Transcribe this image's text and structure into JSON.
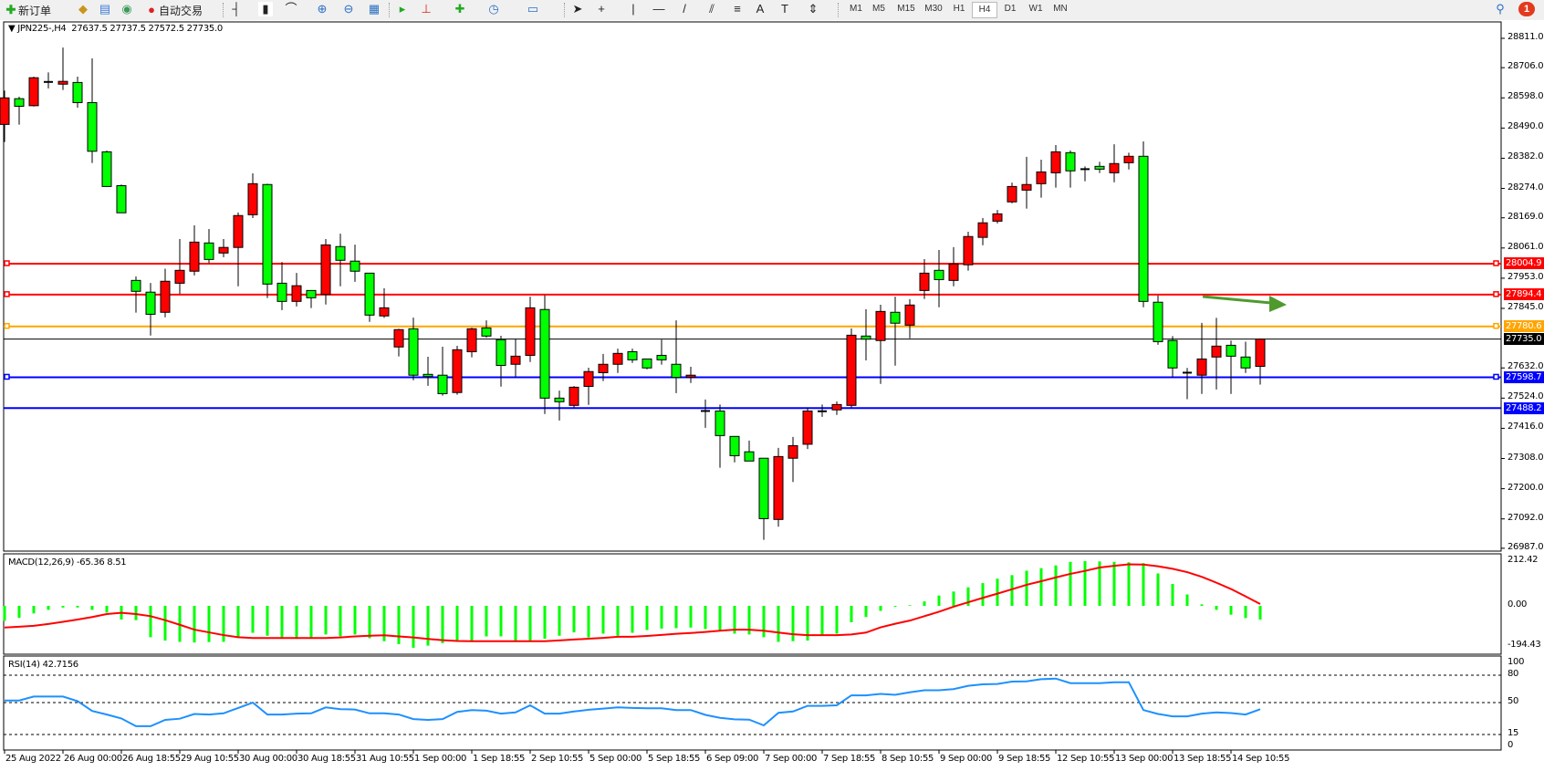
{
  "toolbar": {
    "new_order_label": "新订单",
    "auto_trading_label": "自动交易",
    "icons": [
      "new-order-icon",
      "metaeditor-icon",
      "navigator-icon",
      "market-watch-icon",
      "signals-icon",
      "auto-trading-icon",
      "bar-chart-icon",
      "candlestick-icon",
      "line-chart-icon",
      "zoom-in-icon",
      "zoom-out-icon",
      "tile-windows-icon",
      "autoscroll-icon",
      "chart-shift-icon",
      "indicators-icon",
      "periods-icon",
      "templates-icon",
      "cursor-icon",
      "crosshair-icon",
      "vertical-line-icon",
      "horizontal-line-icon",
      "trendline-icon",
      "equidistant-channel-icon",
      "fibonacci-icon",
      "text-icon",
      "text-label-icon",
      "arrows-icon"
    ],
    "timeframes": [
      "M1",
      "M5",
      "M15",
      "M30",
      "H1",
      "H4",
      "D1",
      "W1",
      "MN"
    ],
    "selected_timeframe": "H4",
    "notification_count": "1"
  },
  "chart": {
    "symbol": "JPN225-,H4",
    "ohlc_text": "27637.5 27737.5 27572.5 27735.0",
    "bull_color": "#ff0000",
    "bear_color": "#00ff00",
    "price_ticks": [
      "28811.0",
      "28706.0",
      "28598.0",
      "28490.0",
      "28382.0",
      "28274.0",
      "28169.0",
      "28061.0",
      "27953.0",
      "27845.0",
      "27632.0",
      "27524.0",
      "27416.0",
      "27308.0",
      "27200.0",
      "27092.0",
      "26987.0"
    ],
    "levels": [
      {
        "value": 28004.9,
        "label": "28004.9",
        "color": "#ff0000"
      },
      {
        "value": 27894.4,
        "label": "27894.4",
        "color": "#ff0000"
      },
      {
        "value": 27780.6,
        "label": "27780.6",
        "color": "#ffa500"
      },
      {
        "value": 27735.0,
        "label": "27735.0",
        "color": "#000000"
      },
      {
        "value": 27598.7,
        "label": "27598.7",
        "color": "#0000ff"
      },
      {
        "value": 27488.2,
        "label": "27488.2",
        "color": "#0000ff"
      }
    ],
    "annotation_arrow_color": "#4f9a2d",
    "time_labels": [
      "25 Aug 2022",
      "26 Aug 00:00",
      "26 Aug 18:55",
      "29 Aug 10:55",
      "30 Aug 00:00",
      "30 Aug 18:55",
      "31 Aug 10:55",
      "1 Sep 00:00",
      "1 Sep 18:55",
      "2 Sep 10:55",
      "5 Sep 00:00",
      "5 Sep 18:55",
      "6 Sep 09:00",
      "7 Sep 00:00",
      "7 Sep 18:55",
      "8 Sep 10:55",
      "9 Sep 00:00",
      "9 Sep 18:55",
      "12 Sep 10:55",
      "13 Sep 00:00",
      "13 Sep 18:55",
      "14 Sep 10:55"
    ]
  },
  "chart_data": [
    {
      "type": "candlestick",
      "title": "JPN225-,H4",
      "fields": [
        "open",
        "high",
        "low",
        "close"
      ],
      "ylim": [
        26987,
        28811
      ],
      "candles": [
        [
          28503,
          28624,
          28440,
          28598
        ],
        [
          28595,
          28602,
          28502,
          28568
        ],
        [
          28570,
          28674,
          28567,
          28670
        ],
        [
          28655,
          28689,
          28632,
          28654
        ],
        [
          28647,
          28778,
          28626,
          28657
        ],
        [
          28653,
          28674,
          28563,
          28581
        ],
        [
          28581,
          28739,
          28365,
          28407
        ],
        [
          28405,
          28409,
          28281,
          28281
        ],
        [
          28284,
          28288,
          28187,
          28187
        ],
        [
          27945,
          27959,
          27830,
          27906
        ],
        [
          27903,
          27936,
          27748,
          27824
        ],
        [
          27831,
          27987,
          27813,
          27942
        ],
        [
          27935,
          28093,
          27897,
          27981
        ],
        [
          27978,
          28142,
          27963,
          28082
        ],
        [
          28079,
          28129,
          28007,
          28020
        ],
        [
          28043,
          28093,
          28028,
          28063
        ],
        [
          28063,
          28188,
          27924,
          28177
        ],
        [
          28180,
          28328,
          28168,
          28291
        ],
        [
          28288,
          28291,
          27882,
          27932
        ],
        [
          27935,
          28011,
          27839,
          27870
        ],
        [
          27870,
          27972,
          27852,
          27926
        ],
        [
          27909,
          27909,
          27846,
          27883
        ],
        [
          27895,
          28093,
          27859,
          28072
        ],
        [
          28066,
          28112,
          27924,
          28017
        ],
        [
          28014,
          28073,
          27940,
          27978
        ],
        [
          27971,
          27971,
          27797,
          27821
        ],
        [
          27818,
          27917,
          27811,
          27847
        ],
        [
          27707,
          27772,
          27673,
          27769
        ],
        [
          27772,
          27812,
          27588,
          27606
        ],
        [
          27609,
          27672,
          27568,
          27601
        ],
        [
          27606,
          27708,
          27533,
          27540
        ],
        [
          27544,
          27711,
          27536,
          27697
        ],
        [
          27690,
          27776,
          27670,
          27772
        ],
        [
          27775,
          27802,
          27740,
          27746
        ],
        [
          27733,
          27747,
          27565,
          27641
        ],
        [
          27645,
          27737,
          27599,
          27674
        ],
        [
          27677,
          27887,
          27653,
          27847
        ],
        [
          27841,
          27892,
          27467,
          27524
        ],
        [
          27524,
          27551,
          27444,
          27511
        ],
        [
          27498,
          27567,
          27490,
          27563
        ],
        [
          27566,
          27633,
          27500,
          27619
        ],
        [
          27615,
          27682,
          27585,
          27645
        ],
        [
          27645,
          27701,
          27614,
          27684
        ],
        [
          27690,
          27701,
          27650,
          27661
        ],
        [
          27664,
          27664,
          27627,
          27632
        ],
        [
          27677,
          27733,
          27644,
          27661
        ],
        [
          27645,
          27802,
          27542,
          27598
        ],
        [
          27599,
          27636,
          27578,
          27606
        ],
        [
          27478,
          27519,
          27418,
          27477
        ],
        [
          27478,
          27501,
          27275,
          27390
        ],
        [
          27387,
          27387,
          27294,
          27318
        ],
        [
          27332,
          27372,
          27299,
          27299
        ],
        [
          27309,
          27309,
          27017,
          27093
        ],
        [
          27090,
          27346,
          27064,
          27315
        ],
        [
          27309,
          27385,
          27224,
          27354
        ],
        [
          27359,
          27489,
          27342,
          27478
        ],
        [
          27476,
          27501,
          27457,
          27477
        ],
        [
          27482,
          27512,
          27464,
          27501
        ],
        [
          27498,
          27773,
          27490,
          27749
        ],
        [
          27746,
          27842,
          27659,
          27735
        ],
        [
          27730,
          27858,
          27575,
          27834
        ],
        [
          27831,
          27887,
          27640,
          27792
        ],
        [
          27785,
          27878,
          27738,
          27857
        ],
        [
          27909,
          28021,
          27879,
          27971
        ],
        [
          27981,
          28054,
          27849,
          27948
        ],
        [
          27945,
          28064,
          27924,
          28004
        ],
        [
          28001,
          28119,
          27980,
          28102
        ],
        [
          28099,
          28168,
          28071,
          28151
        ],
        [
          28157,
          28197,
          28149,
          28183
        ],
        [
          28226,
          28295,
          28221,
          28281
        ],
        [
          28268,
          28387,
          28202,
          28288
        ],
        [
          28291,
          28377,
          28241,
          28333
        ],
        [
          28330,
          28429,
          28277,
          28405
        ],
        [
          28402,
          28410,
          28277,
          28337
        ],
        [
          28343,
          28353,
          28300,
          28342
        ],
        [
          28353,
          28369,
          28329,
          28343
        ],
        [
          28330,
          28432,
          28296,
          28363
        ],
        [
          28366,
          28402,
          28342,
          28389
        ],
        [
          28389,
          28442,
          27849,
          27870
        ],
        [
          27867,
          27891,
          27715,
          27726
        ],
        [
          27730,
          27746,
          27599,
          27632
        ],
        [
          27615,
          27632,
          27520,
          27614
        ],
        [
          27606,
          27793,
          27539,
          27664
        ],
        [
          27671,
          27811,
          27555,
          27710
        ],
        [
          27713,
          27730,
          27539,
          27674
        ],
        [
          27671,
          27726,
          27614,
          27632
        ],
        [
          27637.5,
          27737.5,
          27572.5,
          27735
        ]
      ]
    },
    {
      "type": "bar",
      "title": "MACD(12,26,9)",
      "value_text": "-65.36 8.51",
      "ylim": [
        -194.43,
        212.42
      ],
      "tick_labels": [
        "212.42",
        "0.00",
        "-194.43"
      ],
      "histogram_color": "#00ff00",
      "signal_color": "#ff0000",
      "histogram": [
        -71,
        -57,
        -36,
        -19,
        -8,
        -8,
        -19,
        -32,
        -65,
        -68,
        -149,
        -165,
        -171,
        -174,
        -172,
        -171,
        -149,
        -128,
        -142,
        -154,
        -157,
        -156,
        -136,
        -145,
        -136,
        -154,
        -168,
        -182,
        -199,
        -189,
        -177,
        -167,
        -167,
        -145,
        -145,
        -167,
        -165,
        -156,
        -142,
        -126,
        -150,
        -132,
        -142,
        -128,
        -115,
        -108,
        -106,
        -103,
        -110,
        -121,
        -132,
        -136,
        -149,
        -171,
        -168,
        -165,
        -138,
        -132,
        -78,
        -53,
        -24,
        -4,
        3,
        21,
        49,
        68,
        88,
        108,
        129,
        146,
        167,
        179,
        192,
        209,
        212.42,
        211,
        209,
        207,
        203,
        154,
        104,
        54,
        7,
        -19,
        -42,
        -58,
        -65.36
      ],
      "signal": [
        -103,
        -99,
        -95,
        -86,
        -76,
        -65,
        -53,
        -39,
        -33,
        -39,
        -49,
        -68,
        -90,
        -113,
        -126,
        -139,
        -149,
        -153,
        -153,
        -153,
        -153,
        -153,
        -153,
        -150,
        -145,
        -142,
        -140,
        -145,
        -150,
        -157,
        -163,
        -167,
        -168,
        -168,
        -168,
        -168,
        -168,
        -168,
        -164,
        -160,
        -156,
        -152,
        -147,
        -147,
        -143,
        -138,
        -133,
        -129,
        -124,
        -118,
        -113,
        -113,
        -118,
        -127,
        -135,
        -139,
        -139,
        -139,
        -136,
        -127,
        -102,
        -85,
        -70,
        -49,
        -28,
        -4,
        17,
        38,
        58,
        79,
        100,
        117,
        135,
        152,
        166,
        182,
        190,
        197,
        196,
        188,
        176,
        160,
        138,
        110,
        80,
        45,
        8.51
      ]
    },
    {
      "type": "line",
      "title": "RSI(14)",
      "value_text": "42.7156",
      "ylim": [
        0,
        100
      ],
      "levels": [
        80,
        50,
        15
      ],
      "tick_labels": [
        "100",
        "80",
        "50",
        "15",
        "0"
      ],
      "color": "#1e90ff",
      "values": [
        52.3,
        52.3,
        56.6,
        56.6,
        56.6,
        51.6,
        40.8,
        36.9,
        32.6,
        24.1,
        24.1,
        31.0,
        32.3,
        37.5,
        36.9,
        38.2,
        44.1,
        50.0,
        36.9,
        36.9,
        37.9,
        38.2,
        44.7,
        42.8,
        42.4,
        38.2,
        38.2,
        36.9,
        31.9,
        31.0,
        31.9,
        39.8,
        41.8,
        41.1,
        37.9,
        39.2,
        47.0,
        37.9,
        37.9,
        40.2,
        42.1,
        43.4,
        44.7,
        44.1,
        43.8,
        43.8,
        41.8,
        41.8,
        36.5,
        33.3,
        31.6,
        31.3,
        25.0,
        38.8,
        40.2,
        46.4,
        46.4,
        47.0,
        57.9,
        57.9,
        59.5,
        58.5,
        61.2,
        63.5,
        63.5,
        64.8,
        68.4,
        70.0,
        70.4,
        73.0,
        73.3,
        75.6,
        76.3,
        71.3,
        71.3,
        71.3,
        72.3,
        72.3,
        41.8,
        37.5,
        34.9,
        34.9,
        37.9,
        39.2,
        38.5,
        36.9,
        42.7156
      ]
    }
  ]
}
